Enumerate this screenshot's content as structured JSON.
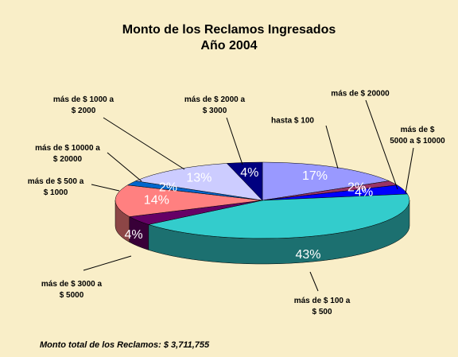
{
  "chart_data": {
    "type": "pie",
    "title": "Monto de los Reclamos Ingresados",
    "subtitle": "Año 2004",
    "categories": [
      "hasta $ 100",
      "más de $ 20000",
      "más de $ 5000 a $ 10000",
      "más de $ 100 a $ 500",
      "más de $ 3000 a $ 5000",
      "más de $ 500 a $ 1000",
      "más de $ 10000 a $ 20000",
      "más de $ 1000 a $ 2000",
      "más de $ 2000 a $ 3000"
    ],
    "values": [
      17,
      2,
      4,
      43,
      4,
      14,
      2,
      13,
      4
    ],
    "value_labels": [
      "17%",
      "2%",
      "4%",
      "43%",
      "4%",
      "14%",
      "2%",
      "13%",
      "4%"
    ],
    "colors": [
      "#9999ff",
      "#993366",
      "#0000ff",
      "#33cccc",
      "#660066",
      "#ff8080",
      "#0066cc",
      "#ccccff",
      "#000080"
    ],
    "annotation": "Monto total de los Reclamos: $ 3,711,755"
  }
}
